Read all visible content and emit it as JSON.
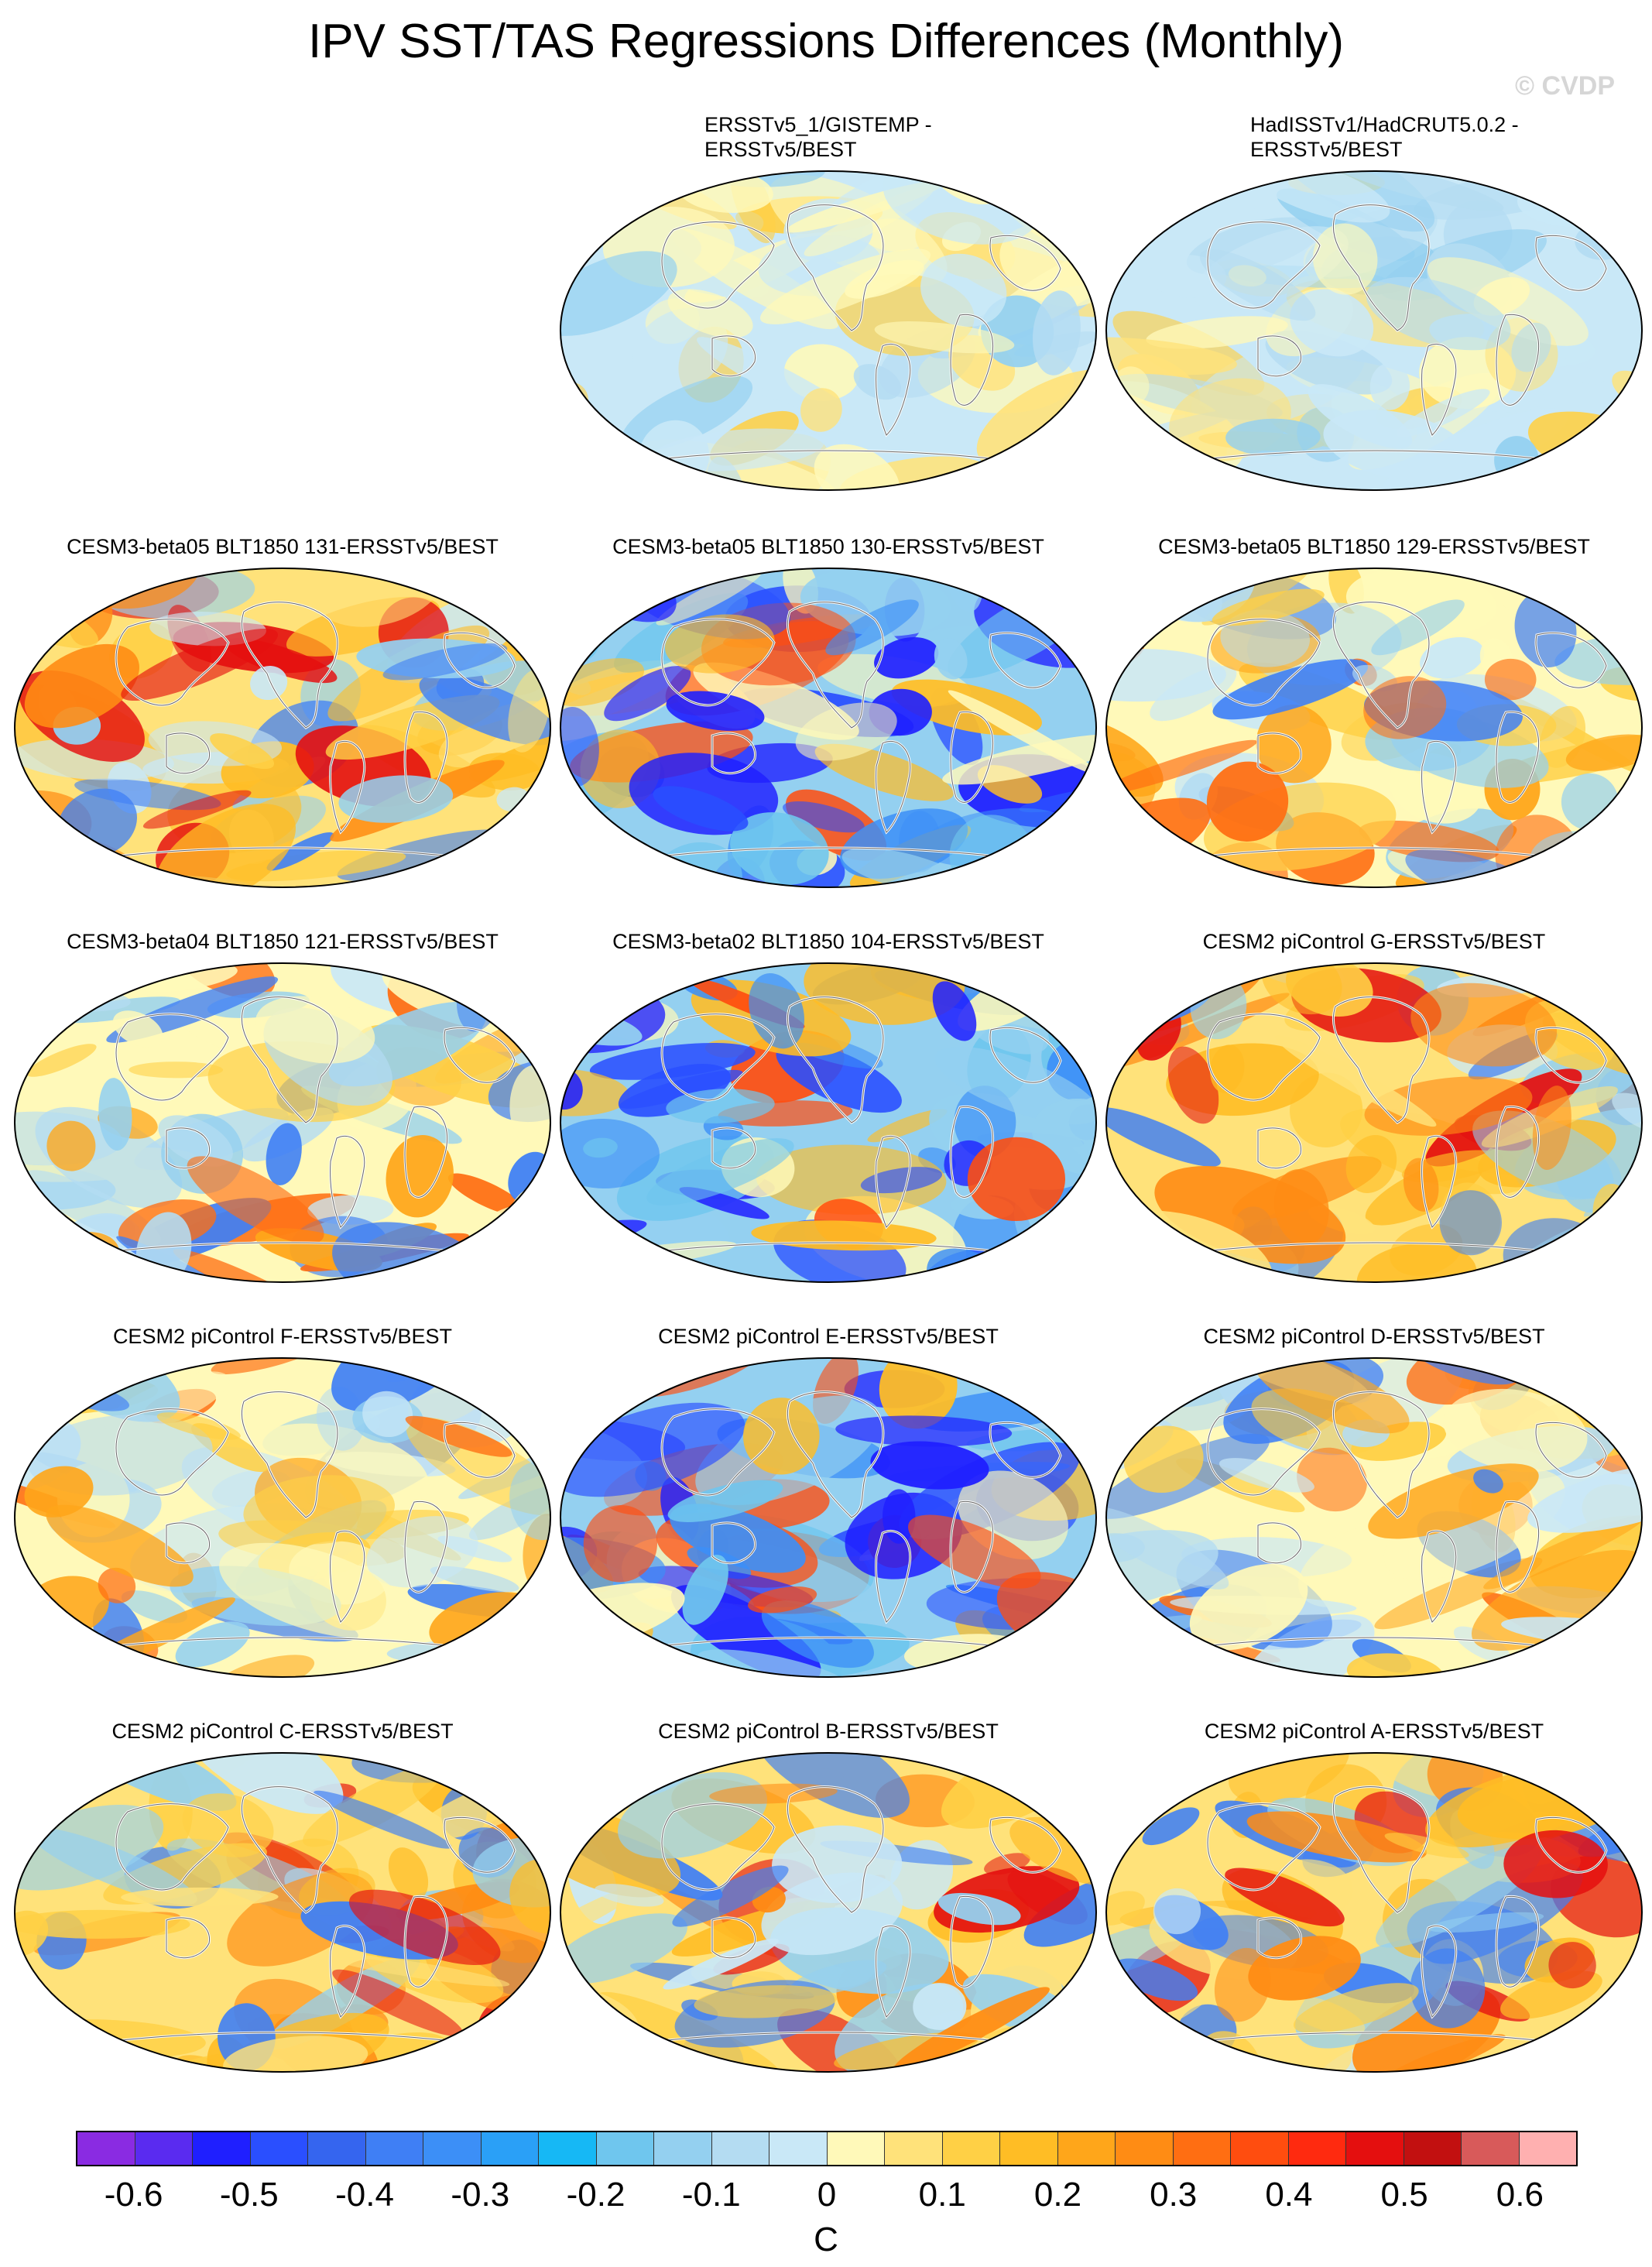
{
  "title": "IPV SST/TAS Regressions Differences (Monthly)",
  "watermark": "© CVDP",
  "panels": [
    {
      "label": "ERSSTv5_1/GISTEMP -\nERSSTv5/BEST",
      "tone": "calm",
      "two_line": true
    },
    {
      "label": "HadISSTv1/HadCRUT5.0.2 -\nERSSTv5/BEST",
      "tone": "calm",
      "two_line": true
    },
    {
      "label": "CESM3-beta05 BLT1850 131-ERSSTv5/BEST",
      "tone": "warm",
      "two_line": false
    },
    {
      "label": "CESM3-beta05 BLT1850 130-ERSSTv5/BEST",
      "tone": "cold",
      "two_line": false
    },
    {
      "label": "CESM3-beta05 BLT1850 129-ERSSTv5/BEST",
      "tone": "mixed",
      "two_line": false
    },
    {
      "label": "CESM3-beta04 BLT1850 121-ERSSTv5/BEST",
      "tone": "mixed",
      "two_line": false
    },
    {
      "label": "CESM3-beta02 BLT1850 104-ERSSTv5/BEST",
      "tone": "cold",
      "two_line": false
    },
    {
      "label": "CESM2 piControl G-ERSSTv5/BEST",
      "tone": "warm",
      "two_line": false
    },
    {
      "label": "CESM2 piControl F-ERSSTv5/BEST",
      "tone": "mixed",
      "two_line": false
    },
    {
      "label": "CESM2 piControl E-ERSSTv5/BEST",
      "tone": "cold",
      "two_line": false
    },
    {
      "label": "CESM2 piControl D-ERSSTv5/BEST",
      "tone": "mixed",
      "two_line": false
    },
    {
      "label": "CESM2 piControl C-ERSSTv5/BEST",
      "tone": "warm",
      "two_line": false
    },
    {
      "label": "CESM2 piControl B-ERSSTv5/BEST",
      "tone": "warm",
      "two_line": false
    },
    {
      "label": "CESM2 piControl A-ERSSTv5/BEST",
      "tone": "warm",
      "two_line": false
    }
  ],
  "colorbar": {
    "colors": [
      "#8a2be2",
      "#5a2bf0",
      "#1f1fff",
      "#2a4fff",
      "#3565ef",
      "#3f7ff5",
      "#3c8ff7",
      "#2aa0f7",
      "#16b8f5",
      "#6fc6ee",
      "#94d0f0",
      "#b4dcf2",
      "#c9e8f7",
      "#fff9b9",
      "#ffe27a",
      "#ffd045",
      "#ffbd25",
      "#ffa61a",
      "#ff8c14",
      "#ff6e12",
      "#ff4d0f",
      "#ff2a0f",
      "#e40f0f",
      "#c21010",
      "#d85a5a",
      "#ffb0b0"
    ],
    "ticks": [
      "-0.6",
      "-0.5",
      "-0.4",
      "-0.3",
      "-0.2",
      "-0.1",
      "0",
      "0.1",
      "0.2",
      "0.3",
      "0.4",
      "0.5",
      "0.6"
    ],
    "unit": "C"
  }
}
